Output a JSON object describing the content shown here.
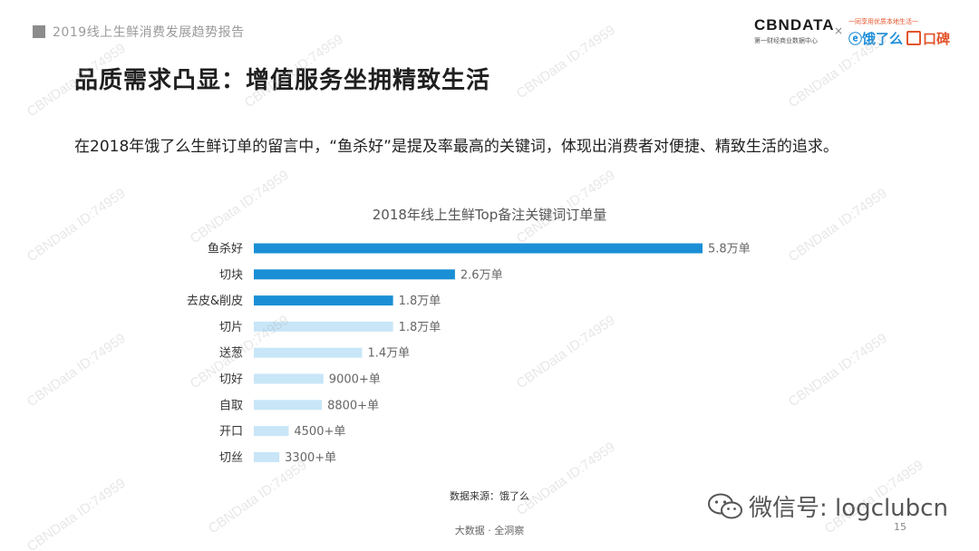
{
  "header": {
    "title": "2019线上生鲜消费发展趋势报告"
  },
  "logos": {
    "cbn": "CBNDATA",
    "cbn_sub": "第一财经商业数据中心",
    "times": "×",
    "ele_slogan": "一同享用优质本地生活一",
    "ele": "饿了么",
    "koubei": "口碑"
  },
  "page_title": "品质需求凸显：增值服务坐拥精致生活",
  "subtitle": "在2018年饿了么生鲜订单的留言中，“鱼杀好”是提及率最高的关键词，体现出消费者对便捷、精致生活的追求。",
  "chart_data": {
    "type": "bar",
    "orientation": "horizontal",
    "title": "2018年线上生鲜Top备注关键词订单量",
    "categories": [
      "鱼杀好",
      "切块",
      "去皮&削皮",
      "切片",
      "送葱",
      "切好",
      "自取",
      "开口",
      "切丝"
    ],
    "values": [
      58000,
      26000,
      18000,
      18000,
      14000,
      9000,
      8800,
      4500,
      3300
    ],
    "value_labels": [
      "5.8万单",
      "2.6万单",
      "1.8万单",
      "1.8万单",
      "1.4万单",
      "9000+单",
      "8800+单",
      "4500+单",
      "3300+单"
    ],
    "highlight_count": 3,
    "colors": {
      "highlight": "#1a8fd6",
      "normal": "#c8e6f7",
      "label": "#666666",
      "category": "#333333"
    },
    "grid": false,
    "legend": "none"
  },
  "source": "数据来源：饿了么",
  "footer": "大数据 · 全洞察",
  "page_number": "15",
  "wechat": {
    "icon": "wechat-icon",
    "text": "微信号: logclubcn"
  },
  "watermark": "CBNData ID:74959"
}
